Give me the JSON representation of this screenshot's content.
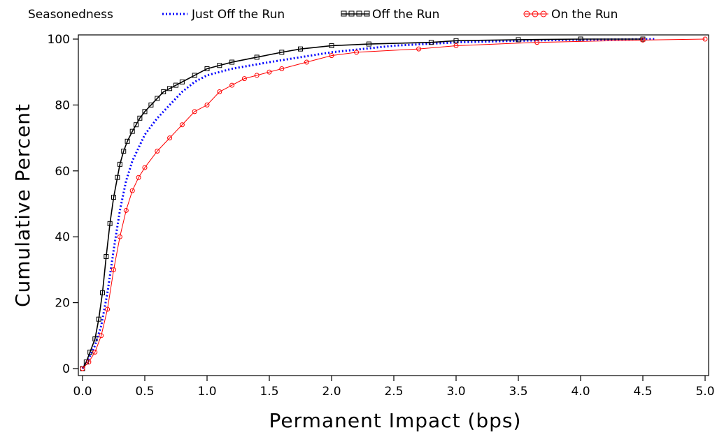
{
  "chart_data": {
    "type": "line",
    "title": "",
    "xlabel": "Permanent Impact (bps)",
    "ylabel": "Cumulative Percent",
    "xlim": [
      0,
      5.0
    ],
    "ylim": [
      0,
      100
    ],
    "xticks": [
      "0.0",
      "0.5",
      "1.0",
      "1.5",
      "2.0",
      "2.5",
      "3.0",
      "3.5",
      "4.0",
      "4.5",
      "5.0"
    ],
    "yticks": [
      "0",
      "20",
      "40",
      "60",
      "80",
      "100"
    ],
    "grid": false,
    "legend": {
      "title": "Seasonedness",
      "placement": "top"
    },
    "series": [
      {
        "name": "Just Off the Run",
        "color": "#0000ff",
        "style": "dotted",
        "marker": "none",
        "x": [
          0.0,
          0.05,
          0.1,
          0.15,
          0.2,
          0.25,
          0.3,
          0.35,
          0.4,
          0.45,
          0.5,
          0.6,
          0.7,
          0.8,
          0.9,
          1.0,
          1.2,
          1.5,
          2.0,
          2.5,
          3.0,
          3.5,
          4.0,
          4.6
        ],
        "y": [
          0,
          3,
          7,
          13,
          23,
          36,
          48,
          57,
          63,
          67,
          71,
          76,
          80,
          84,
          87,
          89,
          91,
          93,
          96,
          98,
          99,
          99.5,
          99.8,
          100
        ]
      },
      {
        "name": "Off the Run",
        "color": "#000000",
        "style": "solid",
        "marker": "square",
        "x": [
          0.0,
          0.03,
          0.06,
          0.1,
          0.13,
          0.16,
          0.19,
          0.22,
          0.25,
          0.28,
          0.3,
          0.33,
          0.36,
          0.4,
          0.43,
          0.46,
          0.5,
          0.55,
          0.6,
          0.65,
          0.7,
          0.75,
          0.8,
          0.9,
          1.0,
          1.1,
          1.2,
          1.4,
          1.6,
          1.75,
          2.0,
          2.3,
          2.8,
          3.0,
          3.5,
          4.0,
          4.5
        ],
        "y": [
          0,
          2,
          5,
          9,
          15,
          23,
          34,
          44,
          52,
          58,
          62,
          66,
          69,
          72,
          74,
          76,
          78,
          80,
          82,
          84,
          85,
          86,
          87,
          89,
          91,
          92,
          93,
          94.5,
          96,
          97,
          98,
          98.5,
          99,
          99.5,
          99.8,
          100,
          100
        ]
      },
      {
        "name": "On the Run",
        "color": "#ff0000",
        "style": "solid",
        "marker": "circle",
        "x": [
          0.0,
          0.05,
          0.1,
          0.15,
          0.2,
          0.25,
          0.3,
          0.35,
          0.4,
          0.45,
          0.5,
          0.6,
          0.7,
          0.8,
          0.9,
          1.0,
          1.1,
          1.2,
          1.3,
          1.4,
          1.5,
          1.6,
          1.8,
          2.0,
          2.2,
          2.7,
          3.0,
          3.65,
          4.5,
          5.0
        ],
        "y": [
          0,
          2,
          5,
          10,
          18,
          30,
          40,
          48,
          54,
          58,
          61,
          66,
          70,
          74,
          78,
          80,
          84,
          86,
          88,
          89,
          90,
          91,
          93,
          95,
          96,
          97,
          98,
          99,
          99.7,
          100
        ]
      }
    ]
  }
}
